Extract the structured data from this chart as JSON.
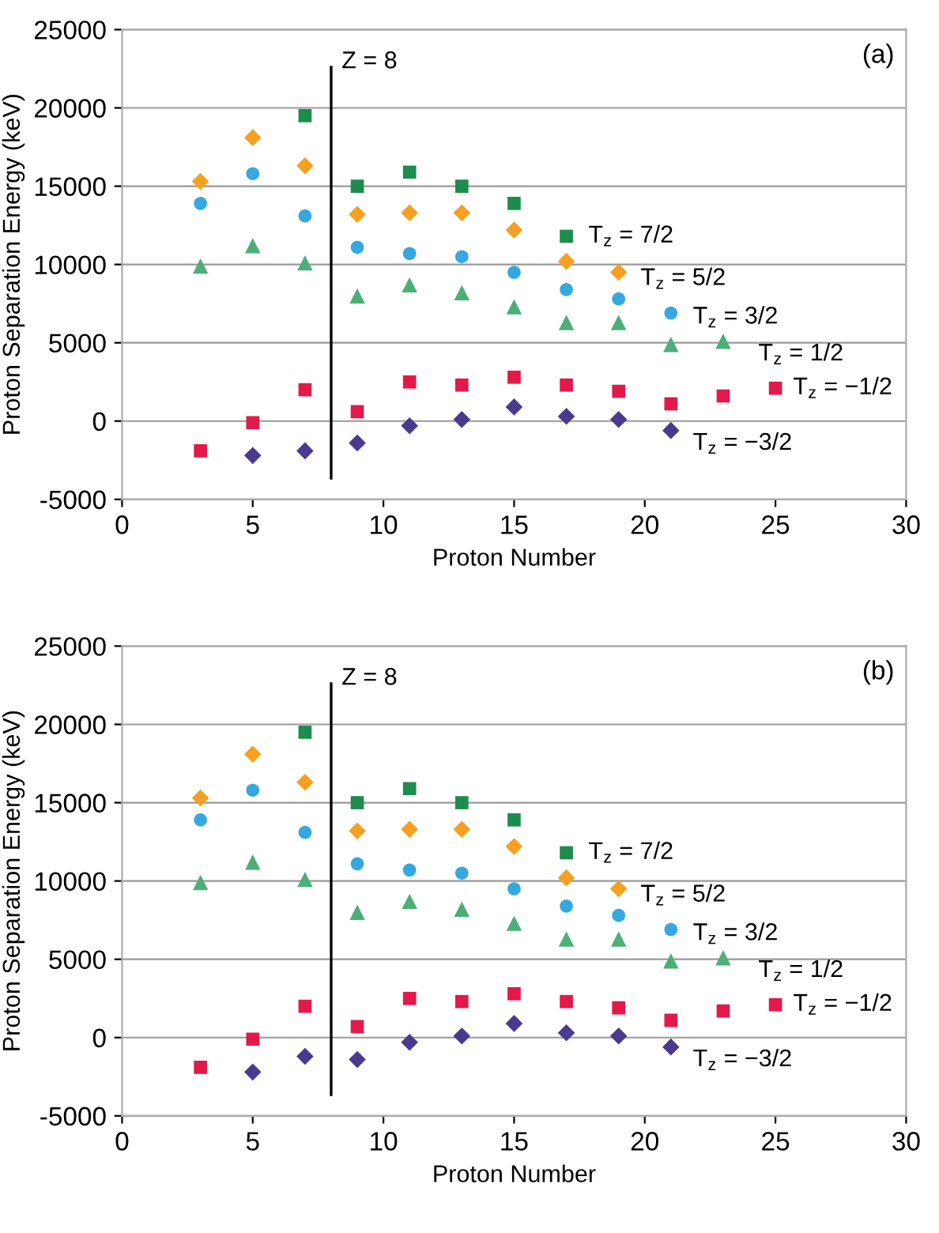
{
  "chart_data": [
    {
      "type": "scatter",
      "xlabel": "Proton Number",
      "ylabel": "Proton Separation Energy (keV)",
      "xlim": [
        0,
        30
      ],
      "xticks": [
        0,
        5,
        10,
        15,
        20,
        25,
        30
      ],
      "ylim": [
        -5000,
        25000
      ],
      "yticks": [
        -5000,
        0,
        5000,
        10000,
        15000,
        20000,
        25000
      ],
      "grid": "y",
      "legend": false,
      "annotations": [
        "(a)"
      ],
      "ref_lines": [
        {
          "axis": "x",
          "value": 8,
          "label": "Z = 8",
          "color": "#000000",
          "line_style": "solid"
        }
      ],
      "series": [
        {
          "name": "T$_{z}$ = 7/2",
          "color": "#1e8c4e",
          "marker": "square",
          "x": [
            7,
            9,
            11,
            13,
            15,
            17
          ],
          "values": [
            19500,
            15000,
            15900,
            15000,
            13900,
            11800
          ]
        },
        {
          "name": "T$_{z}$ = 5/2",
          "color": "#f5a020",
          "marker": "diamond",
          "x": [
            3,
            5,
            7,
            9,
            11,
            13,
            15,
            17,
            19
          ],
          "values": [
            15300,
            18100,
            16300,
            13200,
            13300,
            13300,
            12200,
            10200,
            9500
          ]
        },
        {
          "name": "T$_{z}$ = 3/2",
          "color": "#35a8df",
          "marker": "circle",
          "x": [
            3,
            5,
            7,
            9,
            11,
            13,
            15,
            17,
            19,
            21
          ],
          "values": [
            13900,
            15800,
            13100,
            11100,
            10700,
            10500,
            9500,
            8400,
            7800,
            6900
          ]
        },
        {
          "name": "T$_{z}$ = 1/2",
          "color": "#4caf78",
          "marker": "triangle",
          "x": [
            3,
            5,
            7,
            9,
            11,
            13,
            15,
            17,
            19,
            21,
            23
          ],
          "values": [
            9900,
            11200,
            10100,
            8000,
            8700,
            8200,
            7300,
            6300,
            6300,
            4900,
            5100
          ]
        },
        {
          "name": "T$_{z}$ = −1/2",
          "color": "#e2194a",
          "marker": "square",
          "x": [
            3,
            5,
            7,
            9,
            11,
            13,
            15,
            17,
            19,
            21,
            23,
            25
          ],
          "values": [
            -1900,
            -100,
            2000,
            600,
            2500,
            2300,
            2800,
            2300,
            1900,
            1100,
            1600,
            2100
          ]
        },
        {
          "name": "T$_{z}$ = −3/2",
          "color": "#4a3a8e",
          "marker": "diamond",
          "x": [
            5,
            7,
            9,
            11,
            13,
            15,
            17,
            19,
            21
          ],
          "values": [
            -2200,
            -1900,
            -1400,
            -300,
            100,
            900,
            300,
            100,
            -600
          ]
        }
      ]
    },
    {
      "type": "scatter",
      "xlabel": "Proton Number",
      "ylabel": "Proton Separation Energy (keV)",
      "xlim": [
        0,
        30
      ],
      "xticks": [
        0,
        5,
        10,
        15,
        20,
        25,
        30
      ],
      "ylim": [
        -5000,
        25000
      ],
      "yticks": [
        -5000,
        0,
        5000,
        10000,
        15000,
        20000,
        25000
      ],
      "grid": "y",
      "legend": false,
      "annotations": [
        "(b)"
      ],
      "ref_lines": [
        {
          "axis": "x",
          "value": 8,
          "label": "Z = 8",
          "color": "#000000",
          "line_style": "solid"
        }
      ],
      "series": [
        {
          "name": "T$_{z}$ = 7/2",
          "color": "#1e8c4e",
          "marker": "square",
          "x": [
            7,
            9,
            11,
            13,
            15,
            17
          ],
          "values": [
            19500,
            15000,
            15900,
            15000,
            13900,
            11800
          ]
        },
        {
          "name": "T$_{z}$ = 5/2",
          "color": "#f5a020",
          "marker": "diamond",
          "x": [
            3,
            5,
            7,
            9,
            11,
            13,
            15,
            17,
            19
          ],
          "values": [
            15300,
            18100,
            16300,
            13200,
            13300,
            13300,
            12200,
            10200,
            9500
          ]
        },
        {
          "name": "T$_{z}$ = 3/2",
          "color": "#35a8df",
          "marker": "circle",
          "x": [
            3,
            5,
            7,
            9,
            11,
            13,
            15,
            17,
            19,
            21
          ],
          "values": [
            13900,
            15800,
            13100,
            11100,
            10700,
            10500,
            9500,
            8400,
            7800,
            6900
          ]
        },
        {
          "name": "T$_{z}$ = 1/2",
          "color": "#4caf78",
          "marker": "triangle",
          "x": [
            3,
            5,
            7,
            9,
            11,
            13,
            15,
            17,
            19,
            21,
            23
          ],
          "values": [
            9900,
            11200,
            10100,
            8000,
            8700,
            8200,
            7300,
            6300,
            6300,
            4900,
            5100
          ]
        },
        {
          "name": "T$_{z}$ = −1/2",
          "color": "#e2194a",
          "marker": "square",
          "x": [
            3,
            5,
            7,
            9,
            11,
            13,
            15,
            17,
            19,
            21,
            23,
            25
          ],
          "values": [
            -1900,
            -100,
            2000,
            700,
            2500,
            2300,
            2800,
            2300,
            1900,
            1100,
            1700,
            2100
          ]
        },
        {
          "name": "T$_{z}$ = −3/2",
          "color": "#4a3a8e",
          "marker": "diamond",
          "x": [
            5,
            7,
            9,
            11,
            13,
            15,
            17,
            19,
            21
          ],
          "values": [
            -2200,
            -1200,
            -1400,
            -300,
            100,
            900,
            300,
            100,
            -600
          ]
        }
      ]
    }
  ]
}
